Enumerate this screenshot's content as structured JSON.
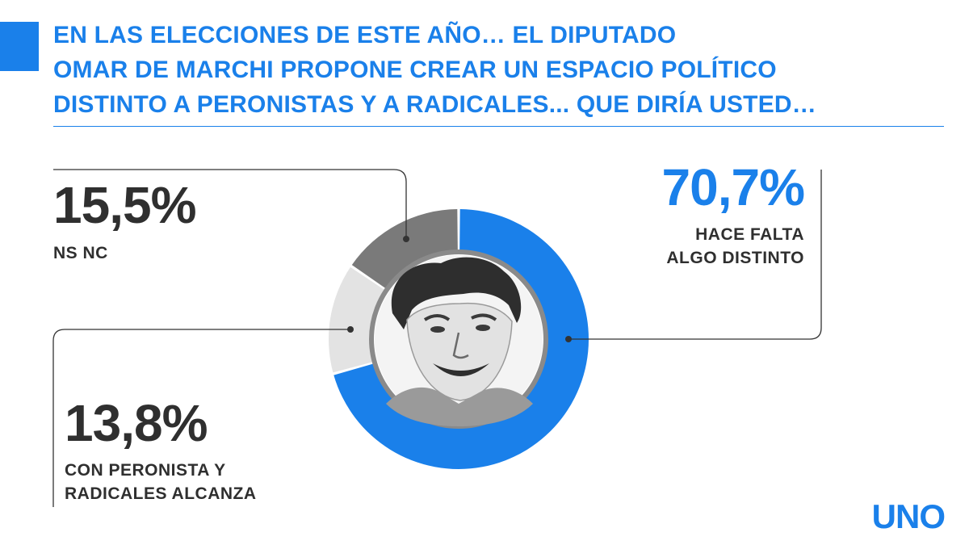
{
  "header": {
    "title_lines": [
      "EN LAS ELECCIONES DE ESTE AÑO… EL DIPUTADO",
      "OMAR DE MARCHI PROPONE CREAR UN ESPACIO POLÍTICO",
      "DISTINTO A PERONISTAS Y A RADICALES... QUE DIRÍA USTED…"
    ]
  },
  "chart_data": {
    "type": "pie",
    "donut": true,
    "slices": [
      {
        "value": 70.7,
        "label": "70,7%",
        "name_lines": [
          "HACE FALTA",
          "ALGO DISTINTO"
        ],
        "color": "#1a80ea"
      },
      {
        "value": 13.8,
        "label": "13,8%",
        "name_lines": [
          "CON PERONISTA Y",
          "RADICALES ALCANZA"
        ],
        "color": "#e3e3e3"
      },
      {
        "value": 15.5,
        "label": "15,5%",
        "name_lines": [
          "NS NC"
        ],
        "color": "#7a7a7a"
      }
    ],
    "center_image": "portrait",
    "legend": "annotations"
  },
  "brand": {
    "logo": "UNO",
    "accent": "#1a80ea"
  }
}
